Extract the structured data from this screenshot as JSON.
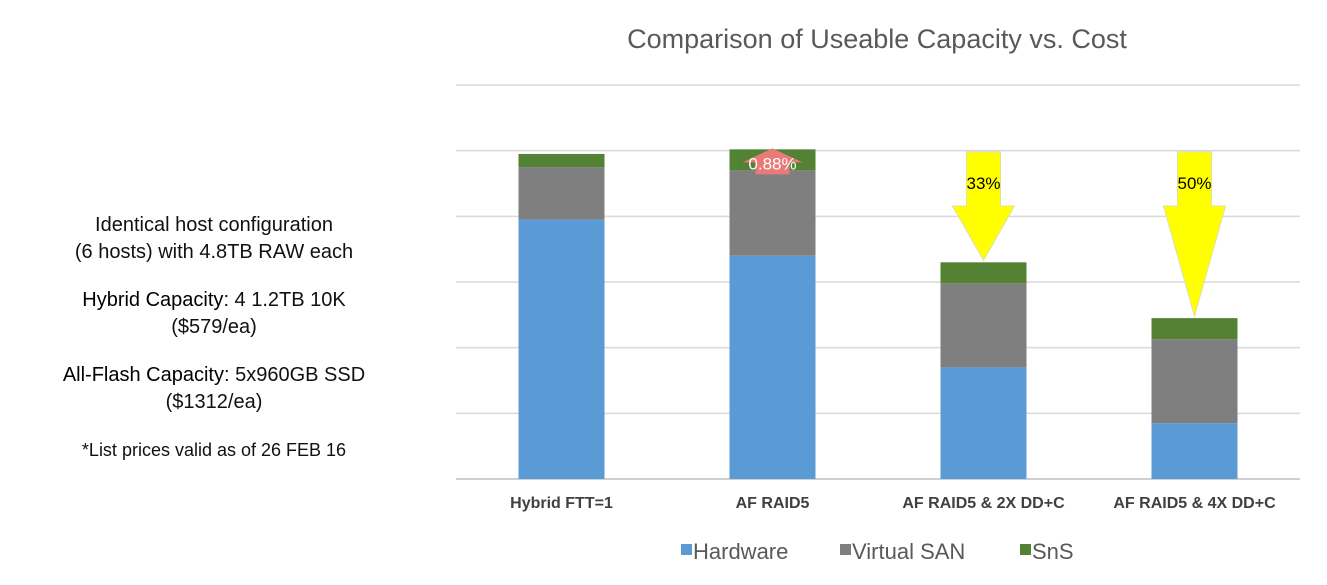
{
  "notes": {
    "line1": "Identical host configuration",
    "line2": "(6 hosts) with 4.8TB RAW each",
    "hybrid_label": "Hybrid Capacity",
    "hybrid_value": ": 4 1.2TB 10K",
    "hybrid_price": "($579/ea)",
    "flash_label": "All-Flash Capacity",
    "flash_value": ": 5x960GB SSD",
    "flash_price": "($1312/ea)",
    "footnote": "*List prices valid as of 26 FEB 16"
  },
  "chart_data": {
    "type": "bar",
    "stacked": true,
    "title": "Comparison of Useable Capacity vs. Cost",
    "xlabel": "",
    "ylabel": "",
    "ylim": [
      0,
      6
    ],
    "y_tick_labels_shown": false,
    "grid": true,
    "legend_position": "bottom",
    "categories": [
      "Hybrid FTT=1",
      "AF RAID5",
      "AF RAID5 & 2X DD+C",
      "AF RAID5 & 4X DD+C"
    ],
    "series": [
      {
        "name": "Hardware",
        "color": "#5b9bd5",
        "values": [
          3.95,
          3.4,
          1.7,
          0.85
        ]
      },
      {
        "name": "Virtual SAN",
        "color": "#7f7f7f",
        "values": [
          0.8,
          1.3,
          1.28,
          1.28
        ]
      },
      {
        "name": "SnS",
        "color": "#548235",
        "values": [
          0.2,
          0.32,
          0.32,
          0.32
        ]
      }
    ],
    "annotations": [
      {
        "category_index": 1,
        "text": "0.88%",
        "shape": "up-arrow",
        "color": "#ea7a7a",
        "text_color": "#ffffff"
      },
      {
        "category_index": 2,
        "text": "33%",
        "shape": "down-arrow",
        "color": "#ffff00",
        "text_color": "#000000"
      },
      {
        "category_index": 3,
        "text": "50%",
        "shape": "down-arrow",
        "color": "#ffff00",
        "text_color": "#000000"
      }
    ]
  }
}
